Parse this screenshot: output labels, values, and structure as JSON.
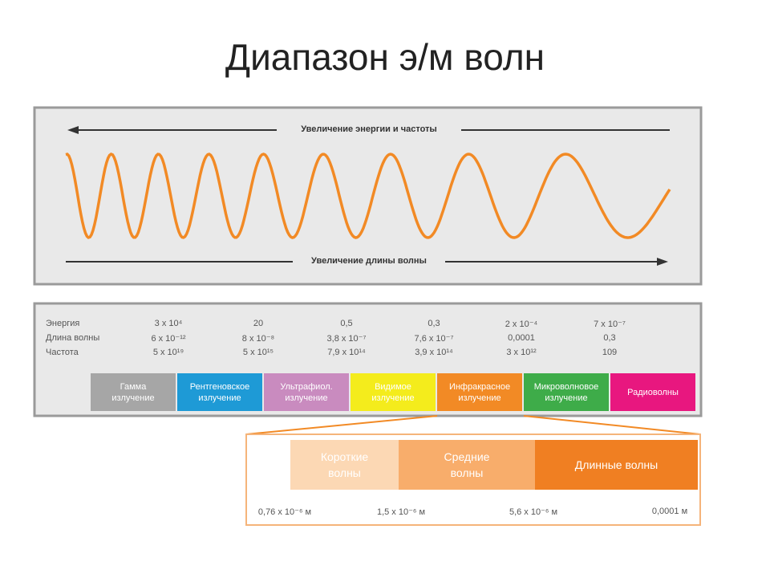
{
  "title": "Диапазон э/м волн",
  "spectrum": {
    "arrow_top": "Увеличение энергии и частоты",
    "arrow_bottom": "Увеличение длины волны"
  },
  "table": {
    "row_labels": [
      "Энергия",
      "Длина волны",
      "Частота"
    ],
    "columns": [
      [
        "3 x 10⁴",
        "6 x 10⁻¹²",
        "5 x 10¹⁹"
      ],
      [
        "20",
        "8 x 10⁻⁸",
        "5 x 10¹⁵"
      ],
      [
        "0,5",
        "3,8 x 10⁻⁷",
        "7,9 x 10¹⁴"
      ],
      [
        "0,3",
        "7,6 x 10⁻⁷",
        "3,9 x 10¹⁴"
      ],
      [
        "2 x 10⁻⁴",
        "0,0001",
        "3 x 10¹²"
      ],
      [
        "7 x 10⁻⁷",
        "0,3",
        "109"
      ]
    ]
  },
  "bands": [
    {
      "label": "Гамма излучение",
      "color": "#a6a6a6"
    },
    {
      "label": "Рентгеновское излучение",
      "color": "#1e9ad6"
    },
    {
      "label": "Ультрафиол. излучение",
      "color": "#c98bbf"
    },
    {
      "label": "Видимое излучение",
      "color": "#f4ec1c"
    },
    {
      "label": "Инфракрасное излучение",
      "color": "#f28a25"
    },
    {
      "label": "Микроволновое излучение",
      "color": "#3eac49"
    },
    {
      "label": "Радиоволны",
      "color": "#e8177f"
    }
  ],
  "infrared": {
    "subbands": [
      {
        "label": "Короткие волны",
        "color": "#fcd8b4"
      },
      {
        "label": "Средние волны",
        "color": "#f8ad6b"
      },
      {
        "label": "Длинные волны",
        "color": "#f07f22"
      }
    ],
    "scale": [
      "0,76 x 10⁻⁶ м",
      "1,5 x 10⁻⁶ м",
      "5,6 x 10⁻⁶ м",
      "0,0001 м"
    ]
  }
}
